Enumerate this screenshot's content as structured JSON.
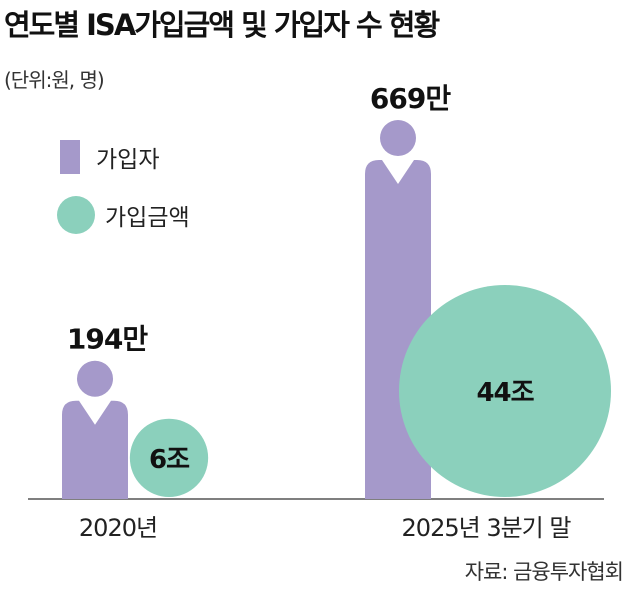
{
  "title": "연도별 ISA가입금액 및 가입자 수 현황",
  "unit": "(단위:원, 명)",
  "source": "자료: 금융투자협회",
  "chart_data": {
    "type": "bar",
    "title": "연도별 ISA가입금액 및 가입자 수 현황",
    "categories": [
      "2020년",
      "2025년 3분기 말"
    ],
    "series": [
      {
        "name": "가입자",
        "values": [
          194,
          669
        ],
        "labels": [
          "194만",
          "669만"
        ],
        "unit": "만 명",
        "color": "#a599ca"
      },
      {
        "name": "가입금액",
        "values": [
          6,
          44
        ],
        "labels": [
          "6조",
          "44조"
        ],
        "unit": "조 원",
        "color": "#8bd0bc"
      }
    ],
    "legend": "top-left"
  }
}
